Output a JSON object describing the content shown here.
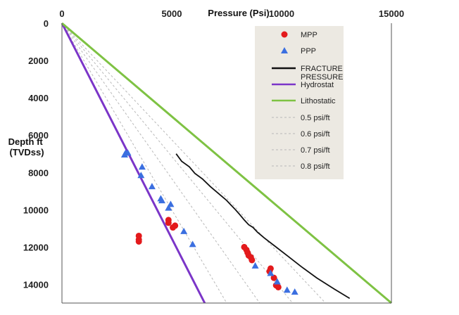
{
  "chart_data": {
    "type": "scatter",
    "xlabel": "Pressure (Psi)",
    "ylabel": [
      "Depth ft",
      "(TVDss)"
    ],
    "xlim": [
      0,
      15000
    ],
    "ylim": [
      0,
      15000
    ],
    "y_reversed": true,
    "x_axis_position": "top",
    "x_ticks": [
      "0",
      "5000",
      "10000",
      "15000"
    ],
    "y_ticks": [
      "0",
      "2000",
      "4000",
      "6000",
      "8000",
      "10000",
      "12000",
      "14000"
    ],
    "grid": false,
    "legend_position": "top-right",
    "series": [
      {
        "name": "MPP",
        "kind": "scatter",
        "marker": "circle",
        "color": "#e31a1c",
        "points": [
          [
            3500,
            11400
          ],
          [
            3500,
            11600
          ],
          [
            3500,
            11700
          ],
          [
            4850,
            10550
          ],
          [
            4850,
            10700
          ],
          [
            5050,
            10950
          ],
          [
            5150,
            10850
          ],
          [
            8300,
            12000
          ],
          [
            8400,
            12150
          ],
          [
            8450,
            12300
          ],
          [
            8500,
            12450
          ],
          [
            8600,
            12550
          ],
          [
            8650,
            12700
          ],
          [
            9500,
            13150
          ],
          [
            9450,
            13300
          ],
          [
            9650,
            13650
          ],
          [
            9750,
            14050
          ],
          [
            9850,
            14150
          ]
        ]
      },
      {
        "name": "PPP",
        "kind": "scatter",
        "marker": "triangle",
        "color": "#3b6fe0",
        "points": [
          [
            2900,
            6950
          ],
          [
            3000,
            6950
          ],
          [
            2850,
            7050
          ],
          [
            3650,
            7700
          ],
          [
            3600,
            8150
          ],
          [
            4100,
            8750
          ],
          [
            4500,
            9400
          ],
          [
            4550,
            9500
          ],
          [
            4950,
            9700
          ],
          [
            4850,
            9900
          ],
          [
            5550,
            11150
          ],
          [
            5950,
            11850
          ],
          [
            8800,
            13000
          ],
          [
            9500,
            13400
          ],
          [
            9800,
            13850
          ],
          [
            10250,
            14300
          ],
          [
            10600,
            14400
          ]
        ]
      },
      {
        "name": "FRACTURE PRESSURE",
        "kind": "line",
        "color": "#111111",
        "points": [
          [
            5200,
            7000
          ],
          [
            5450,
            7400
          ],
          [
            5800,
            7700
          ],
          [
            6050,
            8050
          ],
          [
            6400,
            8350
          ],
          [
            6750,
            8750
          ],
          [
            7000,
            9000
          ],
          [
            7300,
            9300
          ],
          [
            7500,
            9500
          ],
          [
            7700,
            9750
          ],
          [
            7900,
            10000
          ],
          [
            8050,
            10200
          ],
          [
            8300,
            10550
          ],
          [
            8500,
            10800
          ],
          [
            8700,
            10950
          ],
          [
            8900,
            11200
          ],
          [
            9200,
            11500
          ],
          [
            9700,
            11950
          ],
          [
            10300,
            12500
          ],
          [
            10900,
            13050
          ],
          [
            11600,
            13650
          ],
          [
            12400,
            14250
          ],
          [
            13100,
            14750
          ]
        ]
      },
      {
        "name": "Hydrostat",
        "kind": "line",
        "color": "#7b35c8",
        "points": [
          [
            0,
            0
          ],
          [
            6500,
            15000
          ]
        ]
      },
      {
        "name": "Lithostatic",
        "kind": "line",
        "color": "#7ec243",
        "points": [
          [
            0,
            0
          ],
          [
            15000,
            15000
          ]
        ]
      },
      {
        "name": "0.5 psi/ft",
        "kind": "line",
        "dashed": true,
        "color": "#b8b8b8",
        "points": [
          [
            0,
            0
          ],
          [
            7500,
            15000
          ]
        ]
      },
      {
        "name": "0.6 psi/ft",
        "kind": "line",
        "dashed": true,
        "color": "#b8b8b8",
        "points": [
          [
            0,
            0
          ],
          [
            9000,
            15000
          ]
        ]
      },
      {
        "name": "0.7 psi/ft",
        "kind": "line",
        "dashed": true,
        "color": "#b8b8b8",
        "points": [
          [
            0,
            0
          ],
          [
            10500,
            15000
          ]
        ]
      },
      {
        "name": "0.8 psi/ft",
        "kind": "line",
        "dashed": true,
        "color": "#b8b8b8",
        "points": [
          [
            0,
            0
          ],
          [
            12000,
            15000
          ]
        ]
      }
    ],
    "legend": [
      {
        "label": "MPP",
        "series": "MPP"
      },
      {
        "label": "PPP",
        "series": "PPP"
      },
      {
        "label": [
          "FRACTURE",
          "PRESSURE"
        ],
        "series": "FRACTURE PRESSURE"
      },
      {
        "label": "Hydrostat",
        "series": "Hydrostat"
      },
      {
        "label": "Lithostatic",
        "series": "Lithostatic"
      },
      {
        "label": "0.5 psi/ft",
        "series": "0.5 psi/ft"
      },
      {
        "label": "0.6 psi/ft",
        "series": "0.6 psi/ft"
      },
      {
        "label": "0.7 psi/ft",
        "series": "0.7 psi/ft"
      },
      {
        "label": "0.8 psi/ft",
        "series": "0.8 psi/ft"
      }
    ],
    "legend_background": "#ece9e2"
  }
}
